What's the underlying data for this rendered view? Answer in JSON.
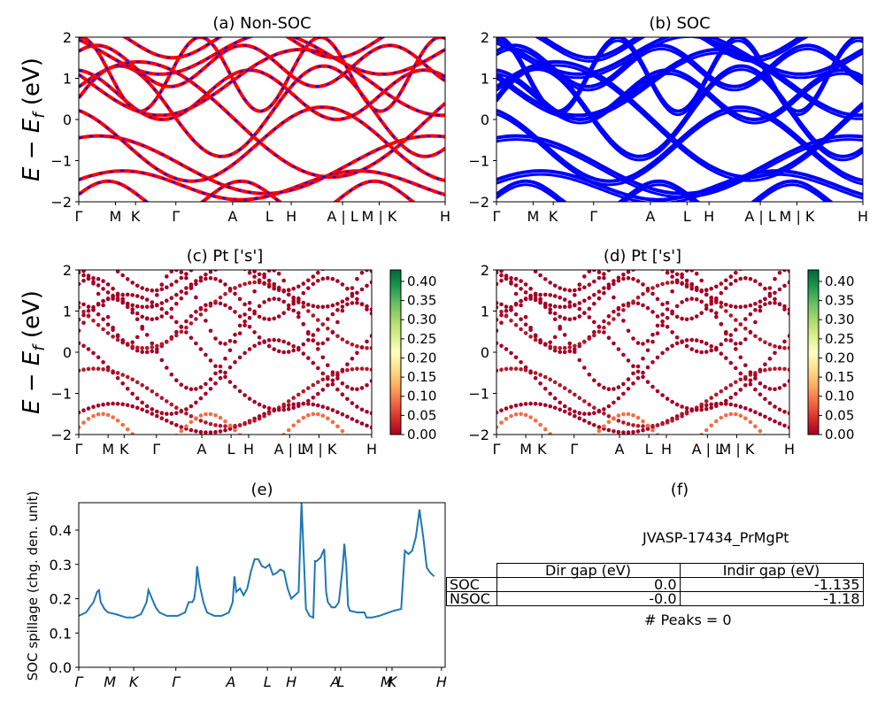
{
  "panels": {
    "a": {
      "title": "(a) Non-SOC"
    },
    "b": {
      "title": "(b) SOC"
    },
    "c": {
      "title": "(c)  Pt ['s']"
    },
    "d": {
      "title": "(d) Pt ['s']"
    },
    "e": {
      "title": "(e)"
    },
    "f": {
      "title": "(f)"
    }
  },
  "band_ylabel": "E − E_f (eV)",
  "band_ylim": [
    -2,
    2
  ],
  "band_yticks": [
    "2",
    "1",
    "0",
    "−1",
    "−2"
  ],
  "kpath_labels_top": [
    "Γ",
    "M",
    "K",
    "Γ",
    "A",
    "L",
    "H",
    "A | L",
    "M | K",
    "H"
  ],
  "kpath_labels_mid": [
    "Γ",
    "M",
    "K",
    "Γ",
    "A",
    "L",
    "H",
    "A | L",
    "M | K",
    "H"
  ],
  "kpath_labels_spill": [
    "Γ",
    "M",
    "K",
    "Γ",
    "A",
    "L",
    "H",
    "A",
    "L",
    "M",
    "K",
    "H"
  ],
  "colorbar": {
    "ticks": [
      "0.40",
      "0.35",
      "0.30",
      "0.25",
      "0.20",
      "0.15",
      "0.10",
      "0.05",
      "0.00"
    ],
    "range": [
      0,
      0.43
    ]
  },
  "colors": {
    "nsoc": "#ff0000",
    "nsoc_dash": "#0000ff",
    "soc": "#0000ff",
    "spill": "#1f77b4"
  },
  "chart_data": {
    "type": "line",
    "ylabel": "SOC spillage (chg. den. unit)",
    "ylim": [
      0.0,
      0.48
    ],
    "yticks": [
      "0.0",
      "0.1",
      "0.2",
      "0.3",
      "0.4"
    ],
    "x": [
      0,
      1,
      2,
      3,
      4,
      5,
      6,
      7,
      8,
      9,
      10,
      11,
      12,
      13,
      14,
      15,
      16,
      17,
      18,
      19,
      20,
      21,
      22,
      23,
      24,
      25,
      26,
      27,
      28,
      29,
      30,
      31,
      32,
      33,
      34,
      35,
      36,
      37,
      38,
      39,
      40,
      41,
      42,
      43,
      44,
      45,
      46,
      47,
      48,
      49,
      50,
      51,
      52,
      53,
      54,
      55,
      56,
      57,
      58,
      59,
      60,
      61,
      62,
      63,
      64,
      65,
      66,
      67,
      68,
      69,
      70,
      71,
      72,
      73,
      74,
      75,
      76,
      77,
      78,
      79,
      80,
      81,
      82,
      83,
      84,
      85,
      86,
      87,
      88,
      89,
      90,
      91,
      92,
      93,
      94,
      95,
      96,
      97,
      98,
      99,
      100,
      101,
      102,
      103,
      104,
      105,
      106,
      107,
      108,
      109,
      110,
      111,
      112,
      113,
      114,
      115,
      116,
      117,
      118,
      119,
      120,
      121,
      122,
      123,
      124,
      125,
      126,
      127,
      128,
      129,
      130,
      131,
      132,
      133,
      134,
      135,
      136,
      137,
      138,
      139,
      140,
      141,
      142,
      143,
      144,
      145,
      146,
      147,
      148,
      149,
      150,
      151,
      152,
      153,
      154,
      155,
      156,
      157,
      158,
      159,
      160,
      161,
      162,
      163,
      164,
      165,
      166,
      167,
      168,
      169,
      170,
      171,
      172,
      173,
      174,
      175,
      176,
      177,
      178,
      179,
      180,
      181,
      182,
      183,
      184,
      185,
      186,
      187,
      188,
      189,
      190,
      191,
      192,
      193,
      194,
      195,
      196,
      197,
      198,
      199,
      200,
      201,
      202,
      203,
      204,
      205,
      206,
      207,
      208,
      209,
      210,
      211,
      212,
      213,
      214,
      215,
      216,
      217,
      218,
      219,
      220,
      221,
      222,
      223,
      224,
      225,
      226,
      227,
      228,
      229,
      230,
      231,
      232,
      233,
      234,
      235,
      236,
      237,
      238,
      239,
      240,
      241,
      242,
      243,
      244,
      245,
      246,
      247,
      248,
      249,
      250,
      251,
      252,
      253,
      254,
      255,
      256,
      257,
      258,
      259,
      260,
      261,
      262,
      263,
      264,
      265,
      266,
      267,
      268,
      269,
      270,
      271,
      272,
      273,
      274,
      275,
      276,
      277,
      278,
      279,
      280,
      281,
      282,
      283,
      284,
      285,
      286,
      287,
      288,
      289,
      290,
      291,
      292,
      293,
      294,
      295,
      296,
      297,
      298,
      299,
      300,
      301,
      302,
      303,
      304,
      305,
      306,
      307,
      308,
      309,
      310,
      311,
      312,
      313,
      314,
      315,
      316,
      317,
      318,
      319,
      320,
      321,
      322,
      323,
      324,
      325,
      326,
      327,
      328,
      329,
      330,
      331,
      332,
      333,
      334,
      335,
      336,
      337,
      338,
      339,
      340,
      341,
      342,
      343,
      344,
      345,
      346,
      347,
      348,
      349,
      350,
      351,
      352,
      353,
      354,
      355,
      356,
      357,
      358,
      359,
      360,
      361,
      362,
      363,
      364,
      365,
      366,
      367,
      368,
      369,
      370,
      371,
      372,
      373,
      374,
      375,
      376,
      377,
      378,
      379,
      380,
      381,
      382,
      383,
      384,
      385,
      386,
      387,
      388,
      389,
      390,
      391,
      392,
      393,
      394,
      395,
      396,
      397,
      398,
      399,
      400,
      401,
      402,
      403,
      404,
      405,
      406,
      407,
      408,
      409,
      410,
      411,
      412,
      413,
      414,
      415,
      416,
      417,
      418,
      419,
      420,
      421,
      422,
      423,
      424,
      425,
      426,
      427,
      428,
      429,
      430,
      431,
      432,
      433,
      434,
      435,
      436,
      437,
      438,
      439,
      440,
      441,
      442,
      443,
      444,
      445,
      446,
      447,
      448,
      449,
      450,
      451,
      452,
      453,
      454,
      455,
      456,
      457,
      458,
      459,
      460,
      461,
      462,
      463,
      464,
      465,
      466,
      467,
      468,
      469,
      470,
      471,
      472,
      473,
      474,
      475,
      476,
      477,
      478,
      479,
      480,
      481,
      482,
      483,
      484,
      485,
      486,
      487,
      488,
      489,
      490,
      491,
      492,
      493,
      494,
      495,
      496,
      497,
      498,
      499,
      500,
      501,
      502,
      503,
      504,
      505,
      506,
      507,
      508,
      509,
      510,
      511,
      512,
      513,
      514,
      515,
      516,
      517,
      518,
      519,
      520,
      521,
      522,
      523,
      524,
      525,
      526,
      527,
      528,
      529,
      530,
      531,
      532,
      533,
      534,
      535,
      536,
      537,
      538,
      539,
      540,
      541,
      542,
      543,
      544,
      545,
      546,
      547,
      548,
      549,
      550,
      551,
      552,
      553,
      554,
      555,
      556,
      557,
      558,
      559,
      560,
      561,
      562,
      563,
      564,
      565,
      566,
      567,
      568,
      569,
      570,
      571,
      572,
      573,
      574,
      575,
      576,
      577,
      578,
      579,
      580,
      581,
      582,
      583,
      584,
      585,
      586,
      587,
      588,
      589,
      590,
      591,
      592,
      593,
      594,
      595,
      596,
      597,
      598,
      599,
      600,
      601,
      602,
      603,
      604,
      605,
      606,
      607,
      608,
      609,
      610,
      611,
      612,
      613,
      614,
      615,
      616,
      617,
      618,
      619,
      620,
      621,
      622,
      623,
      624,
      625,
      626,
      627,
      628,
      629,
      630,
      631,
      632,
      633,
      634,
      635,
      636,
      637,
      638,
      639,
      640,
      641,
      642,
      643,
      644,
      645,
      646,
      647,
      648,
      649,
      650,
      651,
      652,
      653,
      654,
      655,
      656,
      657,
      658,
      659,
      660,
      661,
      662,
      663,
      664,
      665,
      666,
      667,
      668,
      669,
      670,
      671,
      672,
      673,
      674,
      675,
      676,
      677,
      678,
      679,
      680,
      681,
      682,
      683,
      684,
      685,
      686,
      687,
      688,
      689,
      690,
      691,
      692,
      693,
      694,
      695,
      696,
      697,
      698,
      699,
      700,
      701,
      702,
      703,
      704,
      705,
      706,
      707,
      708,
      709,
      710,
      711,
      712,
      713,
      714,
      715,
      716,
      717,
      718,
      719,
      720,
      721,
      722,
      723,
      724,
      725,
      726,
      727,
      728,
      729,
      730,
      731,
      732,
      733,
      734,
      735,
      736,
      737,
      738,
      739,
      740,
      741,
      742,
      743,
      744,
      745,
      746,
      747,
      748,
      749,
      750,
      751,
      752,
      753,
      754,
      755,
      756,
      757,
      758,
      759,
      760,
      761,
      762,
      763,
      764,
      765,
      766,
      767,
      768,
      769,
      770,
      771,
      772,
      773,
      774,
      775,
      776,
      777,
      778,
      779,
      780,
      781,
      782,
      783,
      784,
      785,
      786,
      787,
      788,
      789,
      790,
      791,
      792,
      793,
      794,
      795,
      796,
      797,
      798,
      799,
      800,
      801,
      802,
      803,
      804,
      805,
      806,
      807,
      808,
      809,
      810,
      811,
      812,
      813,
      814,
      815,
      816,
      817,
      818,
      819,
      820,
      821,
      822,
      823,
      824,
      825,
      826,
      827,
      828,
      829,
      830,
      831,
      832,
      833,
      834,
      835,
      836,
      837,
      838,
      839,
      840,
      841,
      842,
      843,
      844,
      845,
      846,
      847,
      848,
      849,
      850,
      851,
      852,
      853,
      854,
      855,
      856,
      857,
      858,
      859,
      860,
      861,
      862,
      863,
      864,
      865,
      866,
      867,
      868,
      869,
      870,
      871,
      872,
      873,
      874,
      875,
      876,
      877,
      878,
      879,
      880,
      881,
      882,
      883,
      884,
      885,
      886,
      887,
      888,
      889,
      890,
      891,
      892,
      893,
      894,
      895,
      896,
      897,
      898,
      899,
      900,
      901,
      902,
      903,
      904,
      905,
      906,
      907,
      908,
      909,
      910,
      911,
      912,
      913,
      914,
      915,
      916,
      917,
      918,
      919,
      920,
      921,
      922,
      923,
      924,
      925,
      926,
      927,
      928,
      929,
      930,
      931,
      932,
      933,
      934,
      935,
      936,
      937,
      938,
      939,
      940,
      941,
      942,
      943,
      944,
      945,
      946,
      947,
      948,
      949,
      950,
      951,
      952,
      953,
      954,
      955,
      956,
      957,
      958,
      959,
      960,
      961,
      962,
      963,
      964,
      965,
      966,
      967,
      968,
      969,
      970,
      971,
      972,
      973,
      974,
      975,
      976,
      977,
      978,
      979,
      980,
      981,
      982,
      983,
      984,
      985,
      986,
      987,
      988,
      989,
      990,
      991,
      992,
      993,
      994,
      995,
      996,
      997,
      998,
      999
    ],
    "note_x": "fractional k-path position 0..1 over 1000 samples",
    "points": [
      [
        0,
        0.15
      ],
      [
        0.02,
        0.16
      ],
      [
        0.04,
        0.19
      ],
      [
        0.05,
        0.22
      ],
      [
        0.055,
        0.225
      ],
      [
        0.06,
        0.19
      ],
      [
        0.07,
        0.17
      ],
      [
        0.08,
        0.16
      ],
      [
        0.1,
        0.155
      ],
      [
        0.13,
        0.145
      ],
      [
        0.15,
        0.145
      ],
      [
        0.17,
        0.155
      ],
      [
        0.185,
        0.19
      ],
      [
        0.19,
        0.225
      ],
      [
        0.2,
        0.2
      ],
      [
        0.21,
        0.175
      ],
      [
        0.22,
        0.16
      ],
      [
        0.24,
        0.15
      ],
      [
        0.27,
        0.15
      ],
      [
        0.29,
        0.16
      ],
      [
        0.3,
        0.19
      ],
      [
        0.31,
        0.19
      ],
      [
        0.315,
        0.2
      ],
      [
        0.32,
        0.24
      ],
      [
        0.323,
        0.295
      ],
      [
        0.33,
        0.24
      ],
      [
        0.34,
        0.19
      ],
      [
        0.35,
        0.16
      ],
      [
        0.37,
        0.15
      ],
      [
        0.39,
        0.15
      ],
      [
        0.41,
        0.16
      ],
      [
        0.42,
        0.19
      ],
      [
        0.425,
        0.265
      ],
      [
        0.43,
        0.22
      ],
      [
        0.44,
        0.23
      ],
      [
        0.45,
        0.21
      ],
      [
        0.46,
        0.23
      ],
      [
        0.47,
        0.28
      ],
      [
        0.48,
        0.315
      ],
      [
        0.49,
        0.315
      ],
      [
        0.5,
        0.295
      ],
      [
        0.51,
        0.29
      ],
      [
        0.52,
        0.3
      ],
      [
        0.53,
        0.27
      ],
      [
        0.54,
        0.275
      ],
      [
        0.55,
        0.285
      ],
      [
        0.56,
        0.28
      ],
      [
        0.57,
        0.23
      ],
      [
        0.58,
        0.2
      ],
      [
        0.59,
        0.21
      ],
      [
        0.6,
        0.22
      ],
      [
        0.608,
        0.48
      ],
      [
        0.615,
        0.3
      ],
      [
        0.62,
        0.17
      ],
      [
        0.63,
        0.15
      ],
      [
        0.64,
        0.145
      ],
      [
        0.645,
        0.31
      ],
      [
        0.65,
        0.31
      ],
      [
        0.66,
        0.32
      ],
      [
        0.67,
        0.345
      ],
      [
        0.675,
        0.22
      ],
      [
        0.68,
        0.19
      ],
      [
        0.69,
        0.175
      ],
      [
        0.7,
        0.175
      ],
      [
        0.71,
        0.19
      ],
      [
        0.72,
        0.29
      ],
      [
        0.725,
        0.36
      ],
      [
        0.73,
        0.3
      ],
      [
        0.735,
        0.18
      ],
      [
        0.74,
        0.165
      ],
      [
        0.76,
        0.16
      ],
      [
        0.78,
        0.16
      ],
      [
        0.785,
        0.145
      ],
      [
        0.8,
        0.145
      ],
      [
        0.82,
        0.15
      ],
      [
        0.86,
        0.165
      ],
      [
        0.88,
        0.17
      ],
      [
        0.89,
        0.34
      ],
      [
        0.9,
        0.33
      ],
      [
        0.91,
        0.34
      ],
      [
        0.92,
        0.38
      ],
      [
        0.93,
        0.46
      ],
      [
        0.94,
        0.38
      ],
      [
        0.95,
        0.29
      ],
      [
        0.96,
        0.275
      ],
      [
        0.97,
        0.265
      ]
    ]
  },
  "table": {
    "title": "JVASP-17434_PrMgPt",
    "headers": [
      "Dir gap (eV)",
      "Indir gap (eV)"
    ],
    "rows": [
      {
        "label": "SOC",
        "dir": "0.0",
        "indir": "-1.135"
      },
      {
        "label": "NSOC",
        "dir": "-0.0",
        "indir": "-1.18"
      }
    ],
    "peaks": "# Peaks = 0"
  }
}
